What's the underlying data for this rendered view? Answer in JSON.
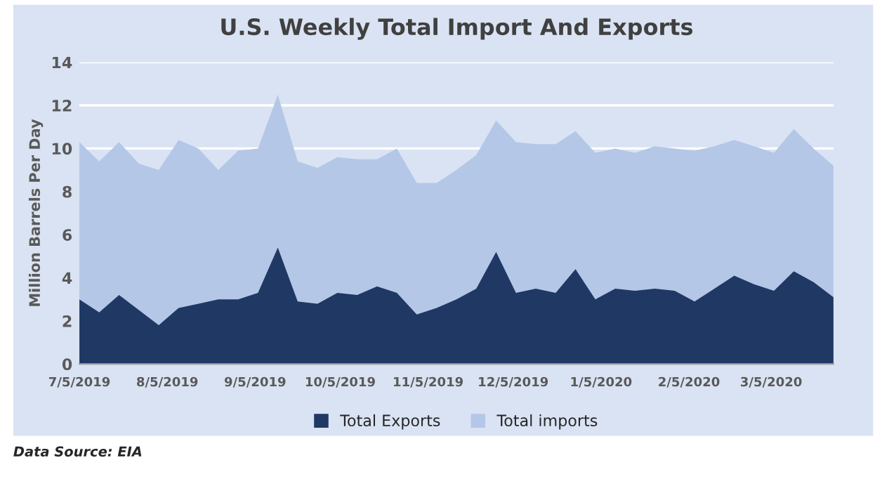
{
  "chart_data": {
    "type": "area",
    "title": "U.S. Weekly Total Import And Exports",
    "ylabel": "Million Barrels Per Day",
    "x": [
      "2019-07-05",
      "2019-07-12",
      "2019-07-19",
      "2019-07-26",
      "2019-08-02",
      "2019-08-09",
      "2019-08-16",
      "2019-08-23",
      "2019-08-30",
      "2019-09-06",
      "2019-09-13",
      "2019-09-20",
      "2019-09-27",
      "2019-10-04",
      "2019-10-11",
      "2019-10-18",
      "2019-10-25",
      "2019-11-01",
      "2019-11-08",
      "2019-11-15",
      "2019-11-22",
      "2019-11-29",
      "2019-12-06",
      "2019-12-13",
      "2019-12-20",
      "2019-12-27",
      "2020-01-03",
      "2020-01-10",
      "2020-01-17",
      "2020-01-24",
      "2020-01-31",
      "2020-02-07",
      "2020-02-14",
      "2020-02-21",
      "2020-02-28",
      "2020-03-06",
      "2020-03-13",
      "2020-03-20",
      "2020-03-27"
    ],
    "series": [
      {
        "name": "Total imports",
        "color": "#b4c7e7",
        "values": [
          10.3,
          9.4,
          10.3,
          9.3,
          9.0,
          10.4,
          10.0,
          9.0,
          9.9,
          10.0,
          12.5,
          9.4,
          9.1,
          9.6,
          9.5,
          9.5,
          10.0,
          8.4,
          8.4,
          9.0,
          9.7,
          11.3,
          10.3,
          10.2,
          10.2,
          10.8,
          9.8,
          10.0,
          9.8,
          10.1,
          10.0,
          9.9,
          10.1,
          10.4,
          10.1,
          9.8,
          10.9,
          10.0,
          9.2
        ]
      },
      {
        "name": "Total Exports",
        "color": "#1f3864",
        "values": [
          3.0,
          2.4,
          3.2,
          2.5,
          1.8,
          2.6,
          2.8,
          3.0,
          3.0,
          3.3,
          5.4,
          2.9,
          2.8,
          3.3,
          3.2,
          3.6,
          3.3,
          2.3,
          2.6,
          3.0,
          3.5,
          5.2,
          3.3,
          3.5,
          3.3,
          4.4,
          3.0,
          3.5,
          3.4,
          3.5,
          3.4,
          2.9,
          3.5,
          4.1,
          3.7,
          3.4,
          4.3,
          3.8,
          3.1
        ]
      }
    ],
    "xlim": [
      "2019-07-05",
      "2020-03-27"
    ],
    "xticks": [
      {
        "value": "2019-07-05",
        "label": "7/5/2019"
      },
      {
        "value": "2019-08-05",
        "label": "8/5/2019"
      },
      {
        "value": "2019-09-05",
        "label": "9/5/2019"
      },
      {
        "value": "2019-10-05",
        "label": "10/5/2019"
      },
      {
        "value": "2019-11-05",
        "label": "11/5/2019"
      },
      {
        "value": "2019-12-05",
        "label": "12/5/2019"
      },
      {
        "value": "2020-01-05",
        "label": "1/5/2020"
      },
      {
        "value": "2020-02-05",
        "label": "2/5/2020"
      },
      {
        "value": "2020-03-05",
        "label": "3/5/2020"
      }
    ],
    "ylim": [
      0,
      14
    ],
    "yticks": [
      0,
      2,
      4,
      6,
      8,
      10,
      12,
      14
    ],
    "grid": "y",
    "legend": "bottom",
    "annotations": [
      "Data Source: EIA"
    ]
  }
}
